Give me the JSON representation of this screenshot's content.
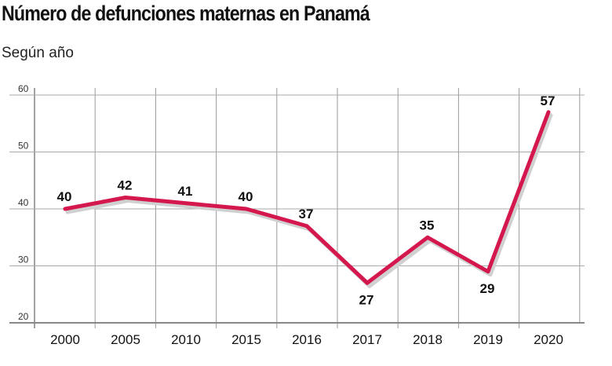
{
  "title": "Número de defunciones maternas en Panamá",
  "subtitle": "Según año",
  "chart_data": {
    "type": "line",
    "categories": [
      "2000",
      "2005",
      "2010",
      "2015",
      "2016",
      "2017",
      "2018",
      "2019",
      "2020"
    ],
    "values": [
      40,
      42,
      41,
      40,
      37,
      27,
      35,
      29,
      57
    ],
    "title": "Número de defunciones maternas en Panamá",
    "subtitle": "Según año",
    "xlabel": "",
    "ylabel": "",
    "ylim": [
      20,
      60
    ],
    "yticks": [
      20,
      30,
      40,
      50,
      60
    ],
    "grid": true,
    "line_color": "#d4174d",
    "shadow_color": "#d0d0d0"
  }
}
